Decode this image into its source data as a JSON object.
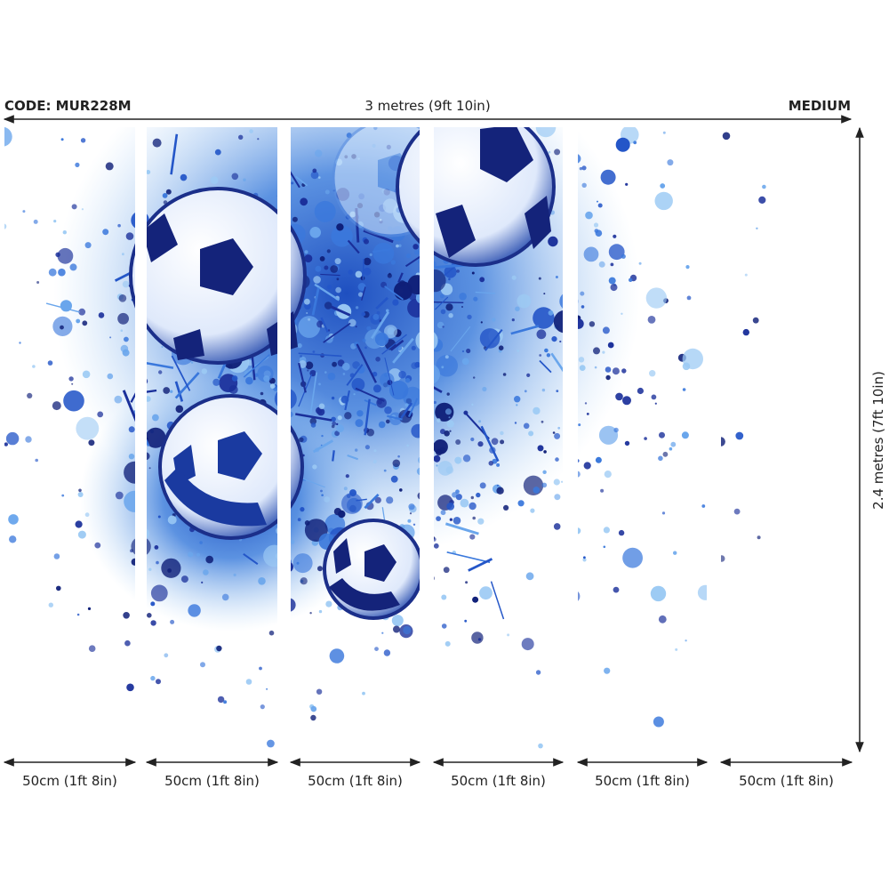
{
  "header": {
    "code": "CODE: MUR228M",
    "width": "3 metres (9ft 10in)",
    "size": "MEDIUM"
  },
  "height": "2.4 metres (7ft 10in)",
  "panels": [
    "50cm (1ft 8in)",
    "50cm (1ft 8in)",
    "50cm (1ft 8in)",
    "50cm (1ft 8in)",
    "50cm (1ft 8in)",
    "50cm (1ft 8in)"
  ]
}
